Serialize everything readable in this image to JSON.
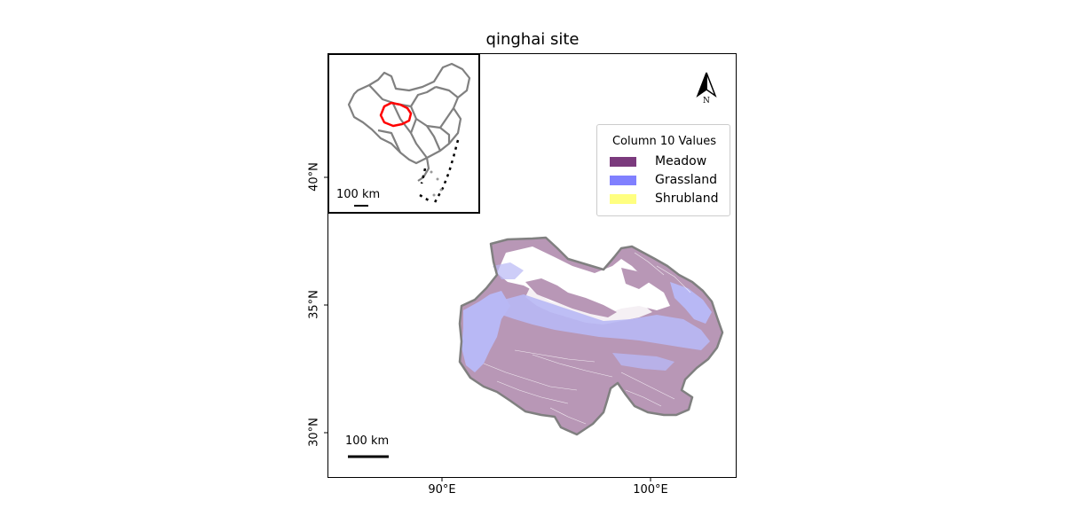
{
  "title": "qinghai site",
  "axes": {
    "y_ticks": [
      "40°N",
      "35°N",
      "30°N"
    ],
    "x_ticks": [
      "90°E",
      "100°E"
    ]
  },
  "legend": {
    "title": "Column 10 Values",
    "items": [
      {
        "label": "Meadow",
        "color": "#7b3a7d"
      },
      {
        "label": "Grassland",
        "color": "#8080ff"
      },
      {
        "label": "Shrubland",
        "color": "#ffff80"
      }
    ]
  },
  "colors": {
    "meadow_fill": "#b897b6",
    "grassland_fill": "#b8b8f5",
    "boundary": "#808080",
    "highlight": "#ff0000"
  },
  "scale_bar_main": "100 km",
  "scale_bar_inset": "100 km",
  "north_arrow": {
    "letter": "N",
    "icon": "north-arrow-icon"
  }
}
